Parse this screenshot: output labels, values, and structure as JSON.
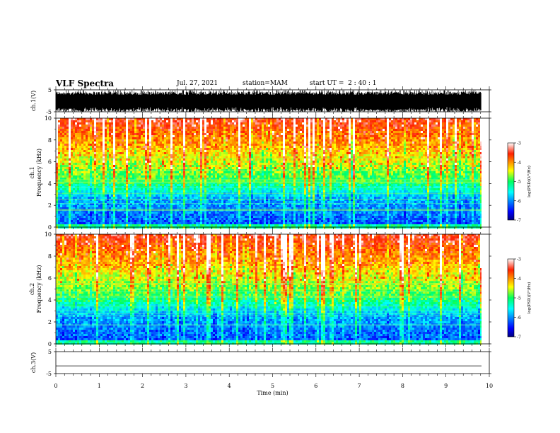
{
  "header": {
    "title": "VLF Spectra",
    "date": "Jul. 27, 2021",
    "station": "station=MAM",
    "start_ut": "start UT =  2 : 40 : 1"
  },
  "chart_data": {
    "type": "heatmap",
    "xlabel": "Time (min)",
    "xlim": [
      0,
      10
    ],
    "xticks": [
      0,
      1,
      2,
      3,
      4,
      5,
      6,
      7,
      8,
      9,
      10
    ],
    "data_end_min": 9.82,
    "panels": [
      {
        "kind": "waveform",
        "ylabel": "ch.1(V)",
        "ylim": [
          -5,
          5
        ],
        "yticks": [
          5,
          -5
        ],
        "style": "dense-noise"
      },
      {
        "kind": "spectrogram",
        "ylabel_top": "ch.1",
        "ylabel": "Frequency (kHz)",
        "ylim": [
          0,
          10
        ],
        "yticks": [
          0,
          2,
          4,
          6,
          8,
          10
        ],
        "colorbar": {
          "label": "log(PSD)(V²/Hz)",
          "range": [
            -7,
            -3
          ],
          "ticks": [
            -3,
            -4,
            -5,
            -6,
            -7
          ]
        }
      },
      {
        "kind": "spectrogram",
        "ylabel_top": "ch.2",
        "ylabel": "Frequency (kHz)",
        "ylim": [
          0,
          10
        ],
        "yticks": [
          0,
          2,
          4,
          6,
          8,
          10
        ],
        "colorbar": {
          "label": "log(PSD)(V²/Hz)",
          "range": [
            -7,
            -3
          ],
          "ticks": [
            -3,
            -4,
            -5,
            -6,
            -7
          ]
        }
      },
      {
        "kind": "waveform",
        "ylabel": "ch.3(V)",
        "ylim": [
          -5,
          5
        ],
        "yticks": [
          5,
          -5
        ],
        "style": "flat",
        "value": -1.5
      }
    ]
  }
}
